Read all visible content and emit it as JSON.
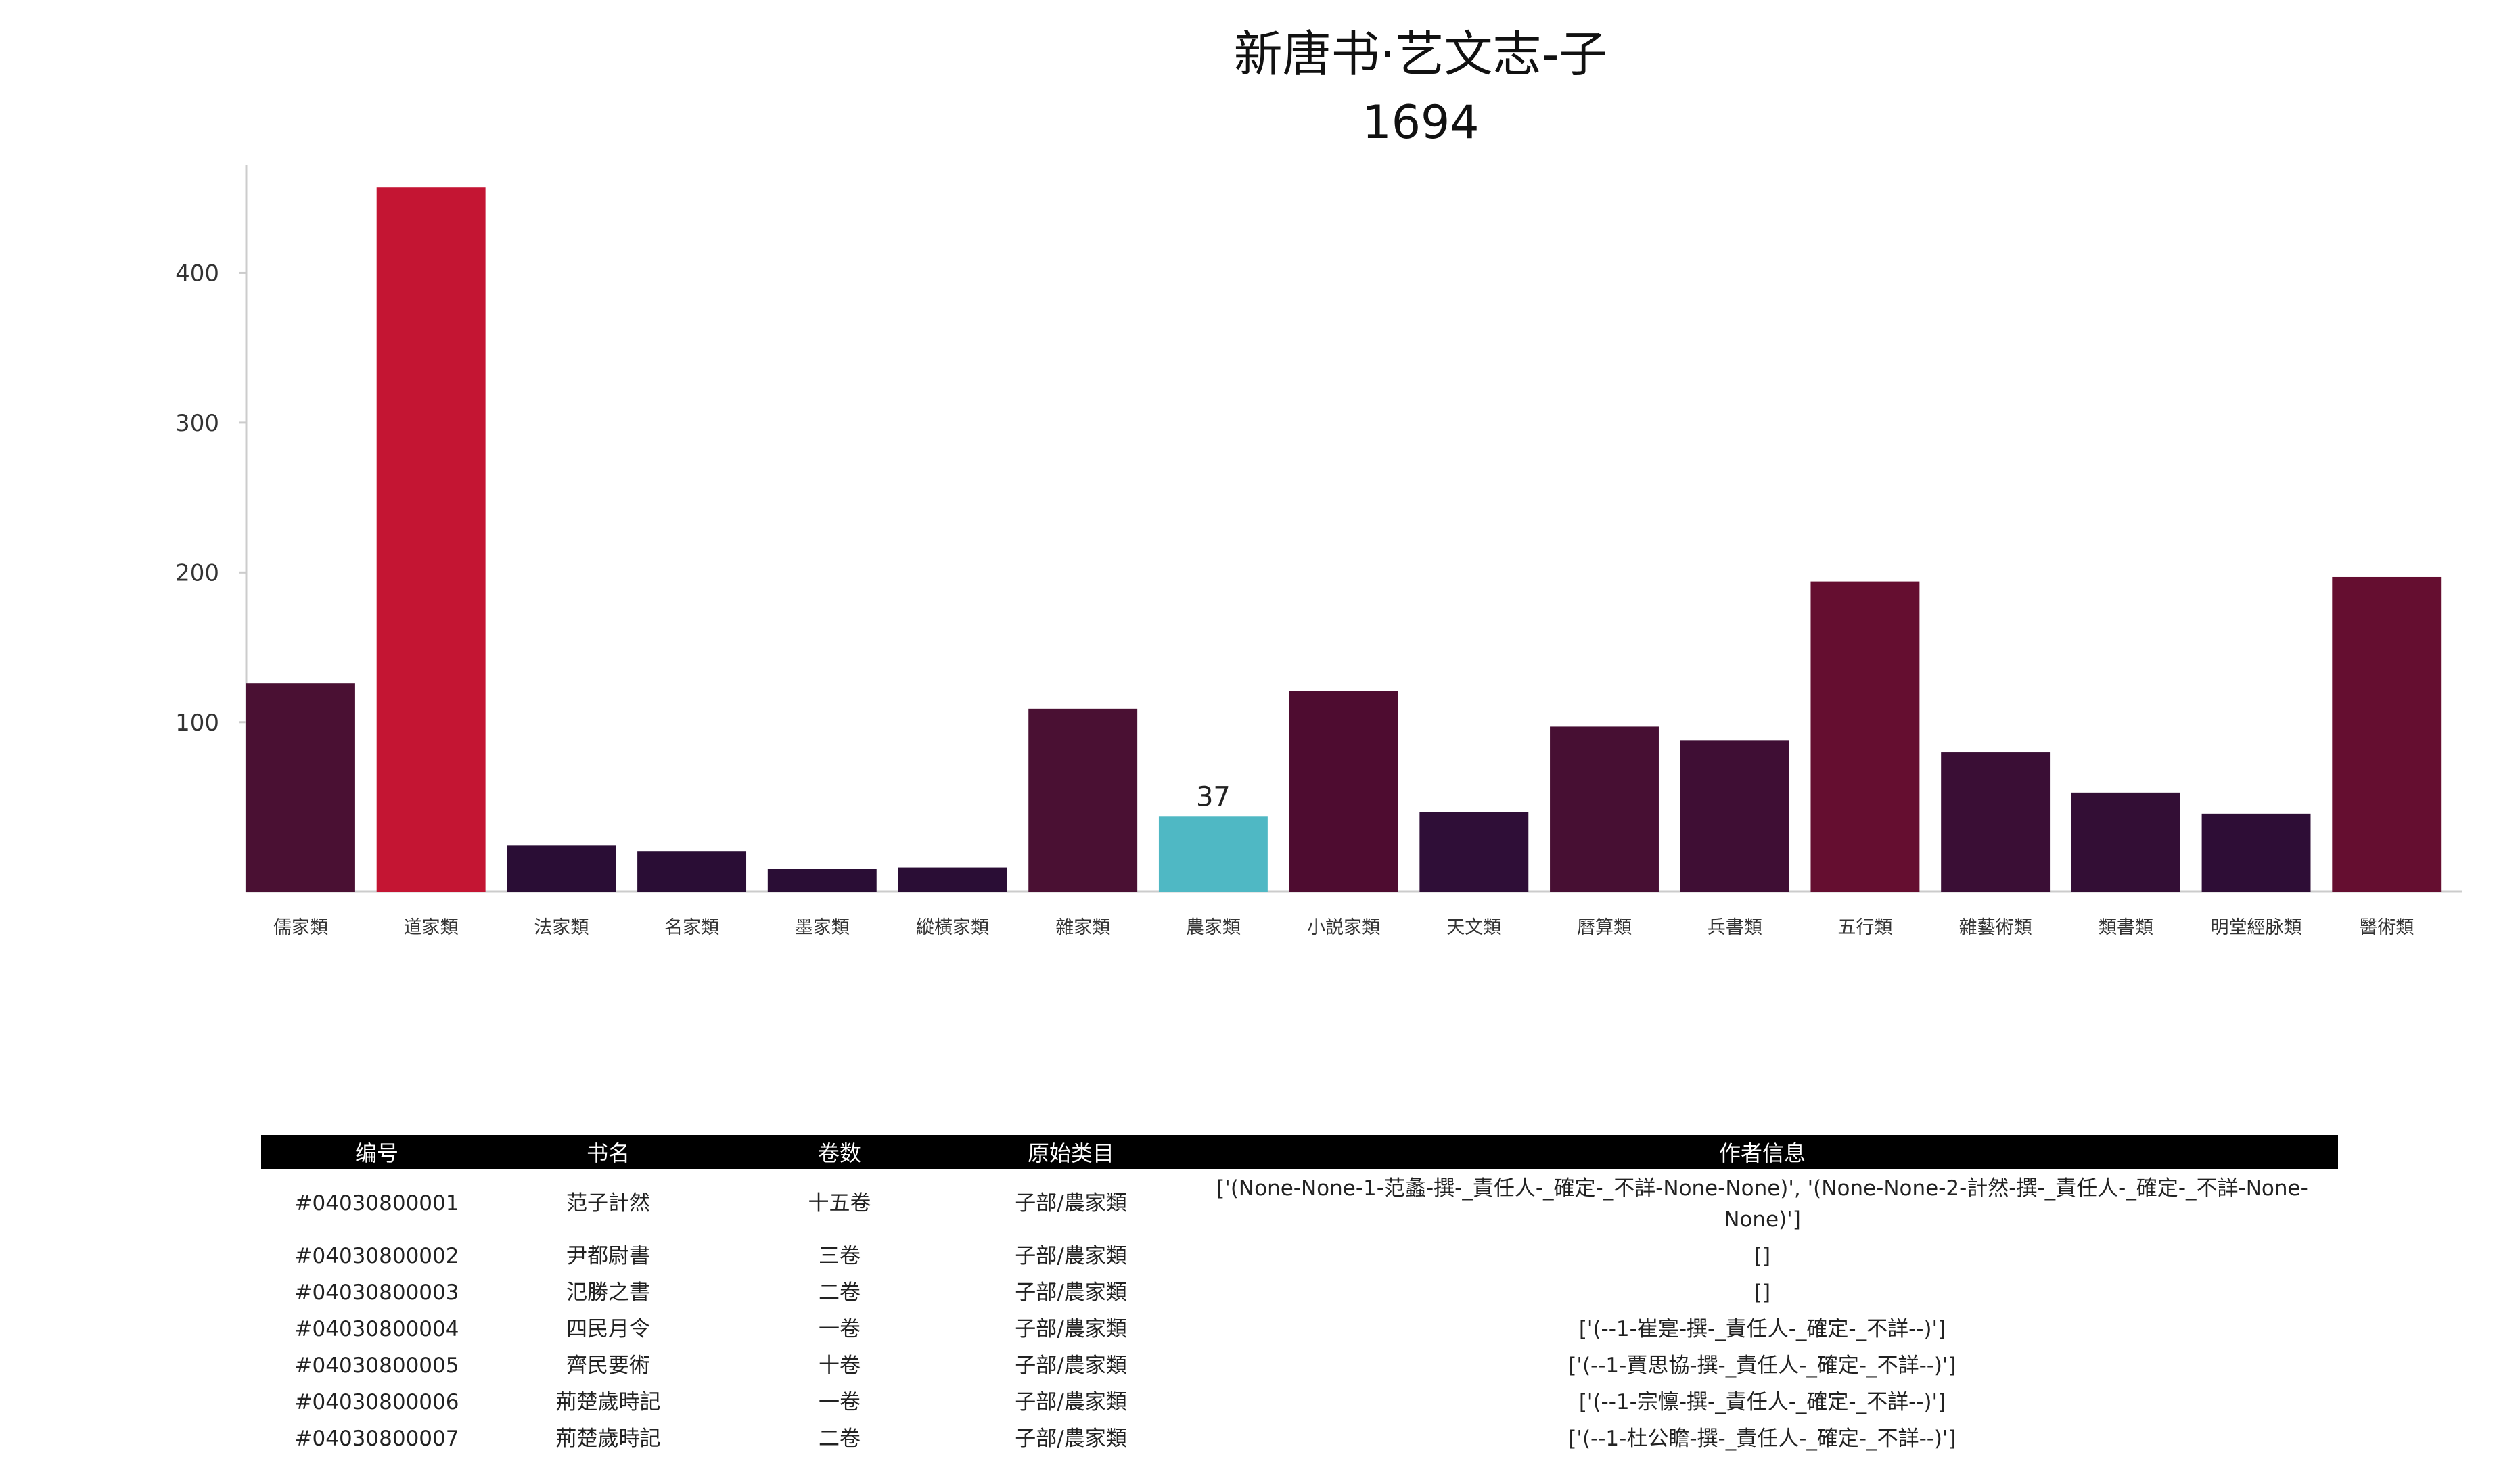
{
  "chart_data": {
    "type": "bar",
    "title": "新唐书·艺文志-子",
    "subtitle": "1694",
    "categories": [
      "儒家類",
      "道家類",
      "法家類",
      "名家類",
      "墨家類",
      "縱橫家類",
      "雜家類",
      "農家類",
      "小説家類",
      "天文類",
      "曆算類",
      "兵書類",
      "五行類",
      "雜藝術類",
      "類書類",
      "明堂經脉類",
      "醫術類"
    ],
    "values": [
      126,
      457,
      18,
      14,
      2,
      3,
      109,
      37,
      121,
      40,
      97,
      88,
      194,
      80,
      53,
      39,
      197
    ],
    "colors": [
      "#4a1033",
      "#c41533",
      "#2a0d35",
      "#2a0d35",
      "#2a0d35",
      "#2a0d35",
      "#4a1033",
      "#4fb8c4",
      "#4e0c30",
      "#2f0e37",
      "#470f33",
      "#3f0e34",
      "#650e30",
      "#3a0e35",
      "#330e35",
      "#2e0d36",
      "#650e30"
    ],
    "highlight_index": 7,
    "data_labels": [
      {
        "index": 7,
        "text": "37"
      }
    ],
    "yticks": [
      "100",
      "200",
      "300",
      "400"
    ],
    "ylim": [
      -13,
      472
    ],
    "xlabel": "",
    "ylabel": "",
    "grid": false,
    "legend": "none"
  },
  "table": {
    "headers": [
      "编号",
      "书名",
      "卷数",
      "原始类目",
      "作者信息"
    ],
    "rows": [
      [
        "#04030800001",
        "范子計然",
        "十五卷",
        "子部/農家類",
        "['(None-None-1-范蠡-撰-_責任人-_確定-_不詳-None-None)', '(None-None-2-計然-撰-_責任人-_確定-_不詳-None-None)']"
      ],
      [
        "#04030800002",
        "尹都尉書",
        "三卷",
        "子部/農家類",
        "[]"
      ],
      [
        "#04030800003",
        "氾勝之書",
        "二卷",
        "子部/農家類",
        "[]"
      ],
      [
        "#04030800004",
        "四民月令",
        "一卷",
        "子部/農家類",
        "['(--1-崔寔-撰-_責任人-_確定-_不詳--)']"
      ],
      [
        "#04030800005",
        "齊民要術",
        "十卷",
        "子部/農家類",
        "['(--1-賈思協-撰-_責任人-_確定-_不詳--)']"
      ],
      [
        "#04030800006",
        "荊楚歲時記",
        "一卷",
        "子部/農家類",
        "['(--1-宗懔-撰-_責任人-_確定-_不詳--)']"
      ],
      [
        "#04030800007",
        "荊楚歲時記",
        "二卷",
        "子部/農家類",
        "['(--1-杜公瞻-撰-_責任人-_確定-_不詳--)']"
      ]
    ]
  }
}
